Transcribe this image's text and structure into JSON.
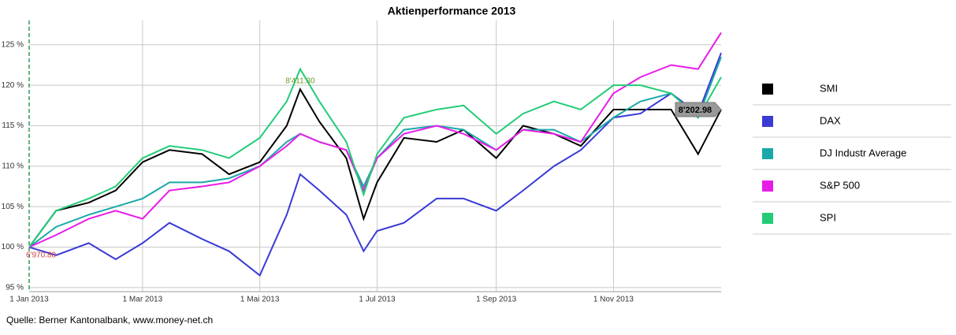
{
  "chart_data": {
    "type": "line",
    "title": "Aktienperformance 2013",
    "source": "Quelle: Berner Kantonalbank, www.money-net.ch",
    "x": [
      "2013-01-01",
      "2013-01-15",
      "2013-02-01",
      "2013-02-15",
      "2013-03-01",
      "2013-03-15",
      "2013-04-01",
      "2013-04-15",
      "2013-05-01",
      "2013-05-15",
      "2013-05-22",
      "2013-06-01",
      "2013-06-15",
      "2013-06-24",
      "2013-07-01",
      "2013-07-15",
      "2013-08-01",
      "2013-08-15",
      "2013-09-01",
      "2013-09-15",
      "2013-10-01",
      "2013-10-15",
      "2013-11-01",
      "2013-11-15",
      "2013-12-01",
      "2013-12-15",
      "2013-12-27"
    ],
    "series": [
      {
        "name": "SMI",
        "color": "#000000",
        "values": [
          100,
          104.5,
          105.5,
          107,
          110.5,
          112,
          111.5,
          109,
          110.5,
          115,
          119.5,
          115.5,
          111,
          103.5,
          108,
          113.5,
          113,
          114.5,
          111,
          115,
          114,
          112.5,
          117,
          117,
          117,
          111.5,
          117
        ]
      },
      {
        "name": "DAX",
        "color": "#3a3ad6",
        "values": [
          100,
          99,
          100.5,
          98.5,
          100.5,
          103,
          101,
          99.5,
          96.5,
          104,
          109,
          107,
          104,
          99.5,
          102,
          103,
          106,
          106,
          104.5,
          107,
          110,
          112,
          116,
          116.5,
          119,
          116.5,
          124
        ]
      },
      {
        "name": "DJ Industr Average",
        "color": "#1aa8a8",
        "values": [
          100,
          102.5,
          104,
          105,
          106,
          108,
          108,
          108.5,
          110,
          113,
          114,
          113,
          112,
          107.5,
          111,
          114.5,
          115,
          114.5,
          112,
          114.5,
          114.5,
          113,
          116,
          118,
          119,
          116,
          123.5
        ]
      },
      {
        "name": "S&P 500",
        "color": "#e81ce8",
        "values": [
          100,
          101.5,
          103.5,
          104.5,
          103.5,
          107,
          107.5,
          108,
          110,
          112.5,
          114,
          113,
          112,
          107,
          111,
          114,
          115,
          114,
          112,
          114.5,
          114,
          113,
          119,
          121,
          122.5,
          122,
          126.5
        ]
      },
      {
        "name": "SPI",
        "color": "#22cc77",
        "values": [
          100,
          104.5,
          106,
          107.5,
          111,
          112.5,
          112,
          111,
          113.5,
          118,
          122,
          118,
          113,
          106.5,
          111.5,
          116,
          117,
          117.5,
          114,
          116.5,
          118,
          117,
          120,
          120,
          119,
          116,
          121
        ]
      }
    ],
    "annotations": [
      {
        "text": "8'411.30",
        "x": "2013-05-22",
        "y": 120.5,
        "color": "#6a9a2a"
      },
      {
        "text": "8'202.98",
        "x": "2013-12-27",
        "y": 117,
        "color": "#000000"
      },
      {
        "text": "6'970.80",
        "x": "2013-01-01",
        "y": 99,
        "color": "#d04040"
      }
    ],
    "xlim": [
      "2013-01-01",
      "2013-12-27"
    ],
    "xticks": [
      {
        "value": "2013-01-01",
        "label": "1 Jan 2013"
      },
      {
        "value": "2013-03-01",
        "label": "1 Mar 2013"
      },
      {
        "value": "2013-05-01",
        "label": "1 Mai 2013"
      },
      {
        "value": "2013-07-01",
        "label": "1 Jul 2013"
      },
      {
        "value": "2013-09-01",
        "label": "1 Sep 2013"
      },
      {
        "value": "2013-11-01",
        "label": "1 Nov 2013"
      }
    ],
    "ylim": [
      94.5,
      128
    ],
    "yticks": [
      {
        "value": 95,
        "label": "95 %"
      },
      {
        "value": 100,
        "label": "100 %"
      },
      {
        "value": 105,
        "label": "105 %"
      },
      {
        "value": 110,
        "label": "110 %"
      },
      {
        "value": 115,
        "label": "115 %"
      },
      {
        "value": 120,
        "label": "120 %"
      },
      {
        "value": 125,
        "label": "125 %"
      }
    ],
    "grid": true
  }
}
